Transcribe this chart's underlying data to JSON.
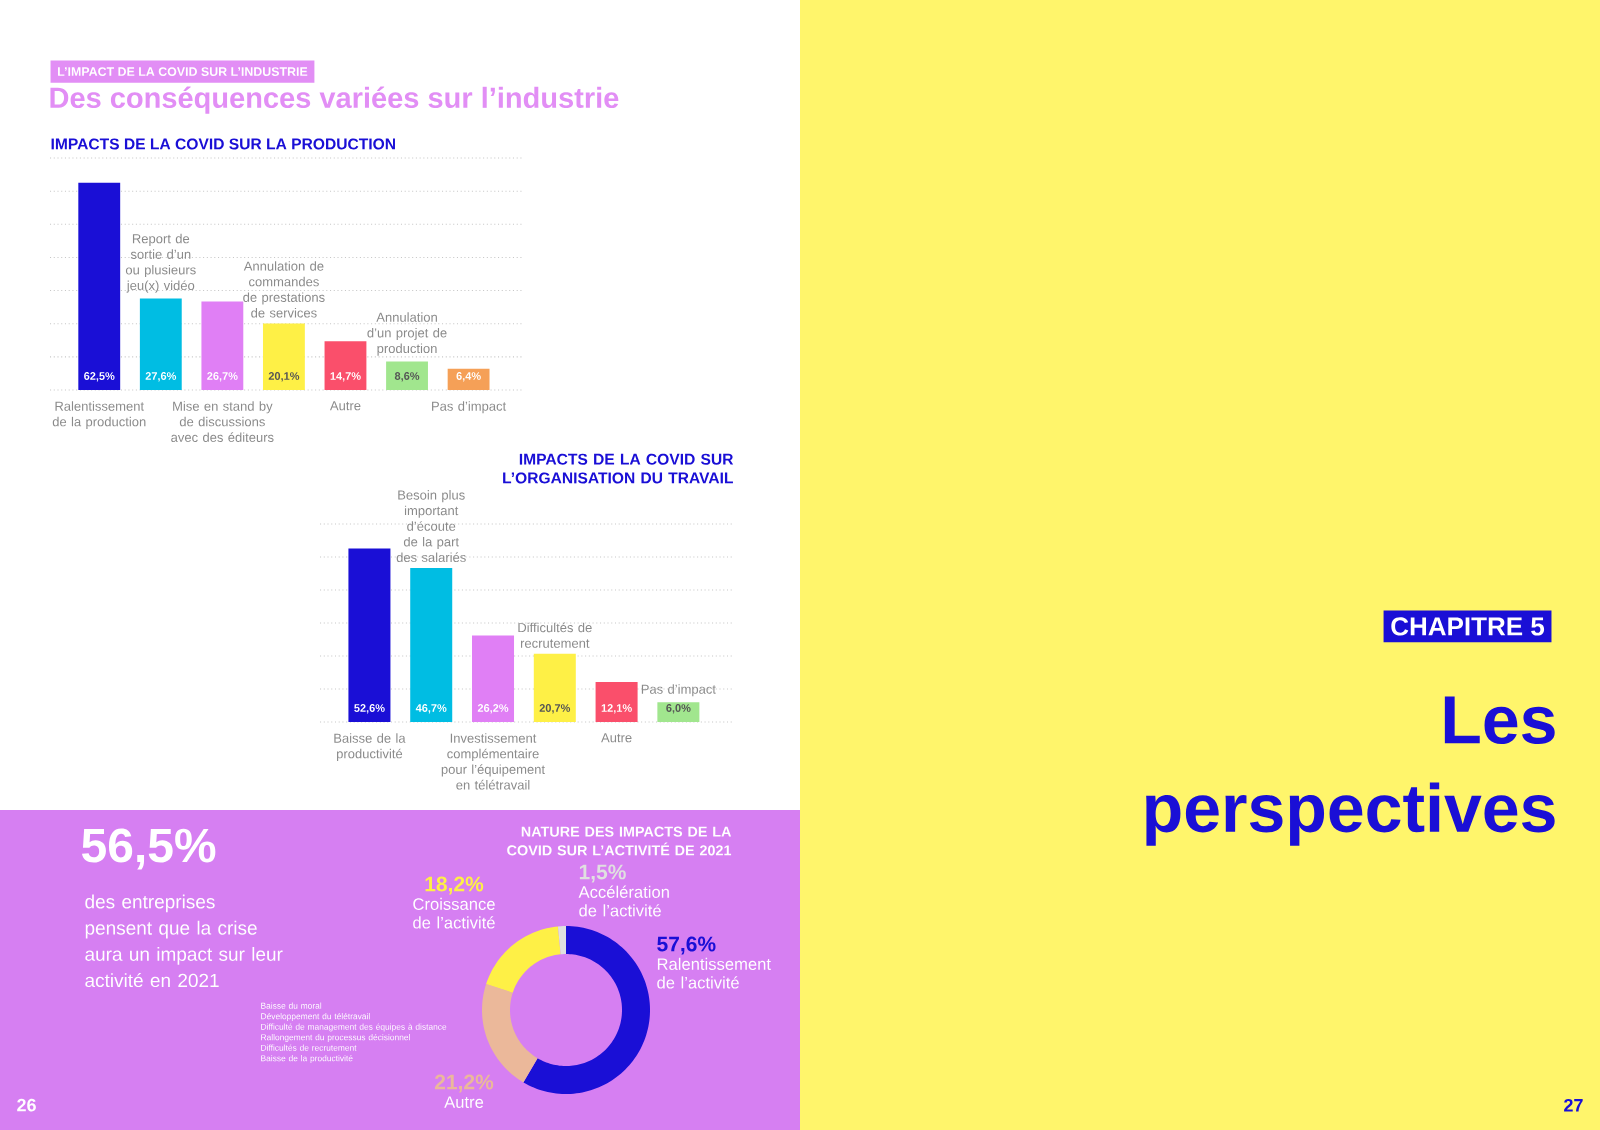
{
  "chart_data": [
    {
      "type": "other",
      "subtitle": "L’IMPACT DE LA COVID SUR L’INDUSTRIE",
      "title": "Des conséquences variées sur l’industrie",
      "annotations": [
        "26"
      ]
    },
    {
      "type": "bar",
      "title": "IMPACTS DE LA COVID SUR LA PRODUCTION",
      "categories": [
        "Ralentissement de la production",
        "Report de sortie d’un ou plusieurs jeu(x) vidéo",
        "Mise en stand by de discussions avec des éditeurs",
        "Annulation de commandes de prestations de services",
        "Autre",
        "Annulation d’un projet de production",
        "Pas d’impact"
      ],
      "values": [
        62.5,
        27.6,
        26.7,
        20.1,
        14.7,
        8.6,
        6.4
      ],
      "value_labels": [
        "62,5%",
        "27,6%",
        "26,7%",
        "20,1%",
        "14,7%",
        "8,6%",
        "6,4%"
      ],
      "colors": [
        "#1a0fd6",
        "#00bde3",
        "#e07ff5",
        "#fef046",
        "#fa4f6b",
        "#a1e68e",
        "#f5a057"
      ],
      "ylim": [
        0,
        70
      ],
      "yticks": [
        {
          "value": 0,
          "label": null
        },
        {
          "value": 10,
          "label": null
        },
        {
          "value": 20,
          "label": null
        },
        {
          "value": 30,
          "label": null
        },
        {
          "value": 40,
          "label": null
        },
        {
          "value": 50,
          "label": null
        },
        {
          "value": 60,
          "label": null
        },
        {
          "value": 70,
          "label": null
        }
      ],
      "grid": "y",
      "tick_labels": "x"
    },
    {
      "type": "bar",
      "title": "IMPACTS DE LA COVID SUR L’ORGANISATION DU TRAVAIL",
      "categories": [
        "Baisse de la productivité",
        "Besoin plus important d’écoute de la part des salariés",
        "Investissement complémentaire pour l’équipement en télétravail",
        "Difficultés de recrutement",
        "Autre",
        "Pas d’impact"
      ],
      "values": [
        52.6,
        46.7,
        26.2,
        20.7,
        12.1,
        6.0
      ],
      "value_labels": [
        "52,6%",
        "46,7%",
        "26,2%",
        "20,7%",
        "12,1%",
        "6,0%"
      ],
      "colors": [
        "#1a0fd6",
        "#00bde3",
        "#e07ff5",
        "#fef046",
        "#fa4f6b",
        "#a1e68e"
      ],
      "ylim": [
        0,
        60
      ],
      "yticks": [
        {
          "value": 0,
          "label": null
        },
        {
          "value": 10,
          "label": null
        },
        {
          "value": 20,
          "label": null
        },
        {
          "value": 30,
          "label": null
        },
        {
          "value": 40,
          "label": null
        },
        {
          "value": 50,
          "label": null
        },
        {
          "value": 60,
          "label": null
        }
      ],
      "grid": "y",
      "tick_labels": "x"
    },
    {
      "type": "donut",
      "title": "NATURE DES IMPACTS DE LA COVID SUR L’ACTIVITÉ DE 2021",
      "categories": [
        "Ralentissement de l’activité",
        "Autre",
        "Croissance de l’activité",
        "Accélération de l’activité"
      ],
      "values": [
        57.6,
        21.2,
        18.2,
        1.5
      ],
      "value_labels": [
        "57,6%",
        "21,2%",
        "18,2%",
        "1,5%"
      ],
      "colors": [
        "#1a0fd6",
        "#ebb89a",
        "#fef046",
        "#e0e0e0"
      ],
      "annotations": [
        "Baisse du moral",
        "Développement du télétravail",
        "Difficulté de management des équipes à distance",
        "Rallongement du processus décisionnel",
        "Difficultés de recrutement",
        "Baisse de la productivité"
      ]
    },
    {
      "type": "other",
      "title": "56,5%",
      "annotations": [
        "des entreprises pensent que la crise aura un impact sur leur activité en 2021"
      ]
    },
    {
      "type": "other",
      "subtitle": "CHAPITRE 5",
      "title": "Les perspectives",
      "annotations": [
        "27"
      ]
    }
  ]
}
